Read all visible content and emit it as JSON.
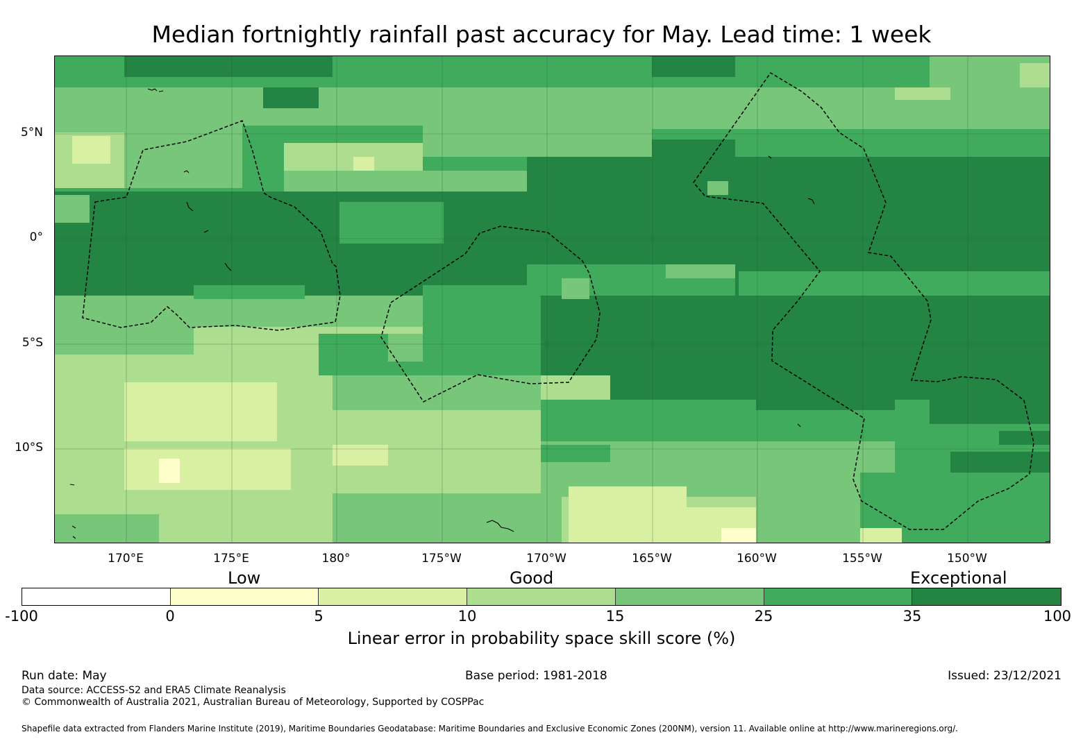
{
  "title": "Median fortnightly rainfall past accuracy for May. Lead time: 1 week",
  "map": {
    "lat_labels": [
      "5°N",
      "0°",
      "5°S",
      "10°S"
    ],
    "lon_labels": [
      "170°E",
      "175°E",
      "180°",
      "175°W",
      "170°W",
      "165°W",
      "160°W",
      "155°W",
      "150°W"
    ],
    "colors": {
      "exceptional": "#238443",
      "very_good": "#41ab5d",
      "good_high": "#78c679",
      "good": "#addd8e",
      "low_high": "#d9f0a3",
      "low": "#ffffcc",
      "none": "#ffffff",
      "eez_line": "#000000"
    }
  },
  "legend": {
    "qualitative": [
      "Low",
      "Good",
      "Exceptional"
    ],
    "ticks": [
      "-100",
      "0",
      "5",
      "10",
      "15",
      "25",
      "35",
      "100"
    ],
    "segment_colors": [
      "#ffffff",
      "#ffffcc",
      "#d9f0a3",
      "#addd8e",
      "#78c679",
      "#41ab5d",
      "#238443"
    ],
    "label": "Linear error in probability space skill score (%)"
  },
  "footer": {
    "run_date": "Run date: May",
    "base_period": "Base period: 1981-2018",
    "issued": "Issued: 23/12/2021",
    "data_source": "Data source: ACCESS-S2 and ERA5 Climate Reanalysis",
    "copyright": "© Commonwealth of Australia 2021, Australian Bureau of Meteorology, Supported by COSPPac",
    "shapefile": "Shapefile data extracted from Flanders Marine Institute (2019), Maritime Boundaries Geodatabase: Maritime Boundaries and Exclusive Economic Zones (200NM), version 11. Available online at http://www.marineregions.org/."
  }
}
